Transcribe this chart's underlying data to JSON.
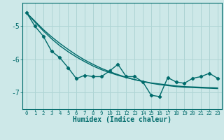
{
  "x": [
    0,
    1,
    2,
    3,
    4,
    5,
    6,
    7,
    8,
    9,
    10,
    11,
    12,
    13,
    14,
    15,
    16,
    17,
    18,
    19,
    20,
    21,
    22,
    23
  ],
  "line_main": [
    -4.6,
    -5.0,
    -5.3,
    -5.75,
    -5.95,
    -6.25,
    -6.58,
    -6.48,
    -6.52,
    -6.52,
    -6.35,
    -6.15,
    -6.52,
    -6.52,
    -6.68,
    -7.08,
    -7.12,
    -6.55,
    -6.68,
    -6.72,
    -6.57,
    -6.52,
    -6.42,
    -6.57
  ],
  "line_smooth1": [
    -4.6,
    -4.85,
    -5.1,
    -5.32,
    -5.52,
    -5.7,
    -5.87,
    -6.02,
    -6.15,
    -6.27,
    -6.37,
    -6.46,
    -6.54,
    -6.61,
    -6.67,
    -6.72,
    -6.76,
    -6.79,
    -6.82,
    -6.84,
    -6.85,
    -6.86,
    -6.87,
    -6.88
  ],
  "line_smooth2": [
    -4.6,
    -4.88,
    -5.14,
    -5.38,
    -5.59,
    -5.77,
    -5.93,
    -6.07,
    -6.2,
    -6.31,
    -6.4,
    -6.48,
    -6.55,
    -6.61,
    -6.66,
    -6.71,
    -6.74,
    -6.77,
    -6.8,
    -6.82,
    -6.83,
    -6.84,
    -6.85,
    -6.86
  ],
  "background_color": "#cde8e8",
  "grid_color": "#aed4d4",
  "line_color": "#006b6b",
  "xlabel": "Humidex (Indice chaleur)",
  "ylim": [
    -7.5,
    -4.3
  ],
  "xlim": [
    -0.5,
    23.5
  ],
  "yticks": [
    -7,
    -6,
    -5
  ],
  "xticks": [
    0,
    1,
    2,
    3,
    4,
    5,
    6,
    7,
    8,
    9,
    10,
    11,
    12,
    13,
    14,
    15,
    16,
    17,
    18,
    19,
    20,
    21,
    22,
    23
  ]
}
